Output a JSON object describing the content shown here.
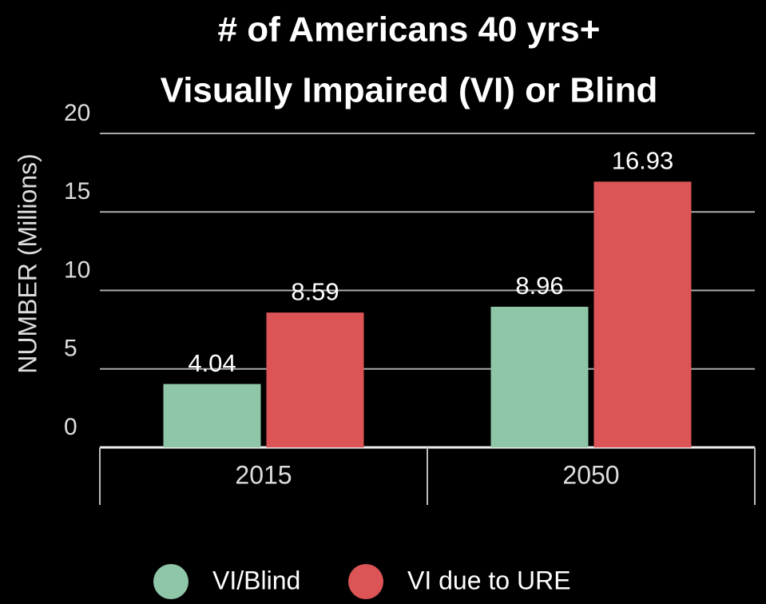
{
  "chart_data": {
    "type": "bar",
    "title": [
      "# of Americans 40 yrs+",
      "Visually Impaired (VI) or Blind"
    ],
    "y_label": "NUMBER (Millions)",
    "categories": [
      "2015",
      "2050"
    ],
    "series": [
      {
        "name": "VI/Blind",
        "color": "#8fc6a8",
        "values": [
          4.04,
          8.96
        ]
      },
      {
        "name": "VI due to URE",
        "color": "#dc5456",
        "values": [
          8.59,
          16.93
        ]
      }
    ],
    "ylim": [
      0,
      20
    ],
    "yticks": [
      0,
      5,
      10,
      15,
      20
    ],
    "grid": true,
    "legend": "bottom"
  }
}
